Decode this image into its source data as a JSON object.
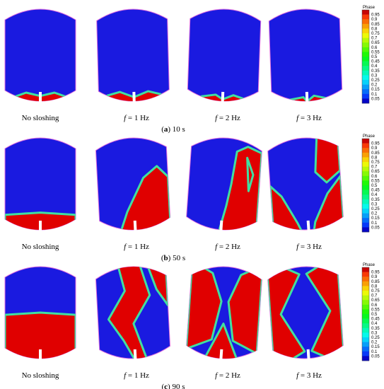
{
  "rows": [
    {
      "letter": "a",
      "caption": "10 s",
      "panels": [
        {
          "text": "No sloshing"
        },
        {
          "var": "f",
          "text": "= 1 Hz"
        },
        {
          "var": "f",
          "text": "= 2 Hz"
        },
        {
          "var": "f",
          "text": "= 3 Hz"
        }
      ]
    },
    {
      "letter": "b",
      "caption": "50 s",
      "panels": [
        {
          "text": "No sloshing"
        },
        {
          "var": "f",
          "text": "= 1 Hz"
        },
        {
          "var": "f",
          "text": "= 2 Hz"
        },
        {
          "var": "f",
          "text": "= 3 Hz"
        }
      ]
    },
    {
      "letter": "c",
      "caption": "90 s",
      "panels": [
        {
          "text": "No sloshing"
        },
        {
          "var": "f",
          "text": "= 1 Hz"
        },
        {
          "var": "f",
          "text": "= 2 Hz"
        },
        {
          "var": "f",
          "text": "= 3 Hz"
        }
      ]
    }
  ],
  "colorbar": {
    "title": "Phase",
    "ticks": [
      0.95,
      0.9,
      0.85,
      0.8,
      0.75,
      0.7,
      0.65,
      0.6,
      0.55,
      0.5,
      0.45,
      0.4,
      0.35,
      0.3,
      0.25,
      0.2,
      0.15,
      0.1,
      0.05
    ]
  }
}
